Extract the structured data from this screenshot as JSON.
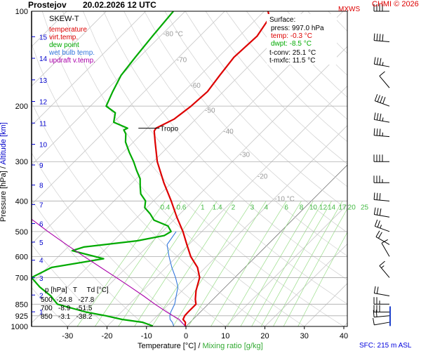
{
  "header": {
    "station": "Prostejov",
    "run_time": "20.02.2026 12 UTC",
    "mxws": "MXWS",
    "credit": "CHMI © 2026"
  },
  "legend": {
    "title": "SKEW-T",
    "items": [
      {
        "label": "temperature",
        "color": "#dd0000"
      },
      {
        "label": "virt.temp.",
        "color": "#dd0000"
      },
      {
        "label": "dew point",
        "color": "#00aa00"
      },
      {
        "label": "wet bulb temp.",
        "color": "#3377dd"
      },
      {
        "label": "updraft v.temp.",
        "color": "#aa00aa"
      }
    ]
  },
  "surface": {
    "title": "Surface:",
    "press": "press: 997.0 hPa",
    "temp": "temp: -0.3 °C",
    "dwpt": "dwpt: -8.5 °C",
    "tconv": "t-conv: 25.1 °C",
    "tmxfc": "t-mxfc: 11.5 °C"
  },
  "table": {
    "header": "p [hPa]   T     Td [°C]",
    "rows": [
      "500  -24.8   -27.8",
      "700   -8.9   -51.5",
      "850   -3.1   -38.2"
    ]
  },
  "footer": {
    "xlabel_temp": "Temperature [°C]",
    "xlabel_sep": " / ",
    "xlabel_mix": "Mixing ratio [g/kg]",
    "sfc": "SFC: 215 m ASL",
    "ylabel_p": "Pressure [hPa]",
    "ylabel_sep": " / ",
    "ylabel_alt": "Altitude [km]"
  },
  "chart_data": {
    "type": "line",
    "subtype": "skew-t log-p diagram",
    "x_axis": {
      "label": "Temperature [°C]",
      "ticks": [
        -30,
        -20,
        -10,
        0,
        10,
        20,
        30,
        40
      ],
      "range": [
        -37,
        43
      ]
    },
    "y_axis": {
      "label": "Pressure [hPa]",
      "scale": "log",
      "ticks": [
        100,
        200,
        300,
        400,
        500,
        600,
        700,
        850,
        925,
        1000
      ],
      "range": [
        100,
        1000
      ]
    },
    "altitude_ticks_km": [
      1,
      2,
      3,
      4,
      5,
      6,
      7,
      8,
      9,
      10,
      11,
      12,
      13,
      14,
      15
    ],
    "isotherm_labels": [
      "-80 °C",
      "-70",
      "-60",
      "-50",
      "-40",
      "-30",
      "-20",
      "-10 °C"
    ],
    "mixing_ratio_labels": [
      "0.4",
      "0.6",
      "1",
      "1.4",
      "2",
      "3",
      "4",
      "6",
      "8",
      "10",
      "12",
      "14",
      "17",
      "20",
      "25"
    ],
    "annotation": "Tropo",
    "series": [
      {
        "color": "#dd0000",
        "points": [
          [
            -0.3,
            997
          ],
          [
            -1.2,
            970
          ],
          [
            -2.5,
            950
          ],
          [
            -3.0,
            925
          ],
          [
            -3.1,
            900
          ],
          [
            -3.1,
            850
          ],
          [
            -4.5,
            820
          ],
          [
            -6.5,
            770
          ],
          [
            -8.9,
            700
          ],
          [
            -12.0,
            650
          ],
          [
            -16.5,
            600
          ],
          [
            -20.5,
            550
          ],
          [
            -24.8,
            500
          ],
          [
            -30.0,
            450
          ],
          [
            -35.5,
            400
          ],
          [
            -42.0,
            350
          ],
          [
            -49.0,
            300
          ],
          [
            -54.5,
            260
          ],
          [
            -57.5,
            240
          ],
          [
            -57.8,
            235
          ],
          [
            -55.5,
            220
          ],
          [
            -54.5,
            200
          ],
          [
            -54.0,
            180
          ],
          [
            -55.0,
            160
          ],
          [
            -56.0,
            140
          ],
          [
            -55.5,
            120
          ],
          [
            -57.0,
            105
          ],
          [
            -59.0,
            100
          ]
        ]
      },
      {
        "color": "#00aa00",
        "points": [
          [
            -8.5,
            997
          ],
          [
            -12.0,
            970
          ],
          [
            -18.0,
            950
          ],
          [
            -23.0,
            925
          ],
          [
            -29.0,
            900
          ],
          [
            -38.2,
            850
          ],
          [
            -42.0,
            800
          ],
          [
            -47.0,
            750
          ],
          [
            -51.5,
            700
          ],
          [
            -49.0,
            650
          ],
          [
            -38.0,
            610
          ],
          [
            -48.0,
            575
          ],
          [
            -46.0,
            560
          ],
          [
            -34.0,
            535
          ],
          [
            -28.5,
            515
          ],
          [
            -27.8,
            500
          ],
          [
            -30.0,
            480
          ],
          [
            -35.0,
            460
          ],
          [
            -37.5,
            440
          ],
          [
            -40.5,
            420
          ],
          [
            -42.0,
            400
          ],
          [
            -45.0,
            380
          ],
          [
            -47.0,
            360
          ],
          [
            -49.0,
            340
          ],
          [
            -52.0,
            320
          ],
          [
            -55.0,
            300
          ],
          [
            -58.5,
            280
          ],
          [
            -62.0,
            260
          ],
          [
            -64.0,
            245
          ],
          [
            -65.5,
            238
          ],
          [
            -65.0,
            235
          ],
          [
            -70.0,
            225
          ],
          [
            -72.0,
            210
          ],
          [
            -76.0,
            200
          ],
          [
            -78.0,
            180
          ],
          [
            -80.0,
            160
          ],
          [
            -81.0,
            140
          ],
          [
            -82.0,
            120
          ],
          [
            -83.0,
            100
          ]
        ]
      },
      {
        "color": "#3377dd",
        "points": [
          [
            -3.2,
            997
          ],
          [
            -4.5,
            970
          ],
          [
            -5.8,
            950
          ],
          [
            -6.8,
            925
          ],
          [
            -7.5,
            900
          ],
          [
            -8.5,
            850
          ],
          [
            -10.2,
            800
          ],
          [
            -12.0,
            750
          ],
          [
            -15.0,
            700
          ],
          [
            -18.5,
            650
          ],
          [
            -22.0,
            600
          ],
          [
            -25.5,
            550
          ],
          [
            -26.5,
            500
          ]
        ]
      },
      {
        "color": "#aa00aa",
        "points": [
          [
            -0.3,
            997
          ],
          [
            -3.5,
            950
          ],
          [
            -6.0,
            925
          ],
          [
            -8.5,
            900
          ],
          [
            -13.5,
            850
          ],
          [
            -18.5,
            800
          ],
          [
            -24.0,
            750
          ],
          [
            -30.0,
            700
          ],
          [
            -36.5,
            650
          ],
          [
            -43.5,
            600
          ],
          [
            -51.0,
            550
          ],
          [
            -59.0,
            500
          ],
          [
            -67.5,
            450
          ],
          [
            -76.5,
            400
          ],
          [
            -86.5,
            350
          ],
          [
            -97.0,
            300
          ],
          [
            -108.0,
            250
          ],
          [
            -120.0,
            200
          ],
          [
            -133.0,
            150
          ],
          [
            -146.0,
            100
          ]
        ]
      }
    ],
    "wind_profile": [
      {
        "p": 100,
        "dir": 270,
        "kt": 40
      },
      {
        "p": 125,
        "dir": 275,
        "kt": 40
      },
      {
        "p": 150,
        "dir": 280,
        "kt": 35
      },
      {
        "p": 175,
        "dir": 320,
        "kt": 10
      },
      {
        "p": 200,
        "dir": 290,
        "kt": 40
      },
      {
        "p": 225,
        "dir": 280,
        "kt": 35
      },
      {
        "p": 250,
        "dir": 275,
        "kt": 35
      },
      {
        "p": 300,
        "dir": 270,
        "kt": 40
      },
      {
        "p": 350,
        "dir": 270,
        "kt": 35
      },
      {
        "p": 400,
        "dir": 275,
        "kt": 30
      },
      {
        "p": 450,
        "dir": 280,
        "kt": 30
      },
      {
        "p": 500,
        "dir": 290,
        "kt": 25
      },
      {
        "p": 550,
        "dir": 300,
        "kt": 20
      },
      {
        "p": 600,
        "dir": 330,
        "kt": 10
      },
      {
        "p": 700,
        "dir": 320,
        "kt": 15
      },
      {
        "p": 800,
        "dir": 280,
        "kt": 20
      },
      {
        "p": 850,
        "dir": 270,
        "kt": 25
      },
      {
        "p": 900,
        "dir": 270,
        "kt": 30
      },
      {
        "p": 925,
        "dir": 265,
        "kt": 20
      },
      {
        "p": 970,
        "dir": 260,
        "kt": 10
      }
    ]
  }
}
